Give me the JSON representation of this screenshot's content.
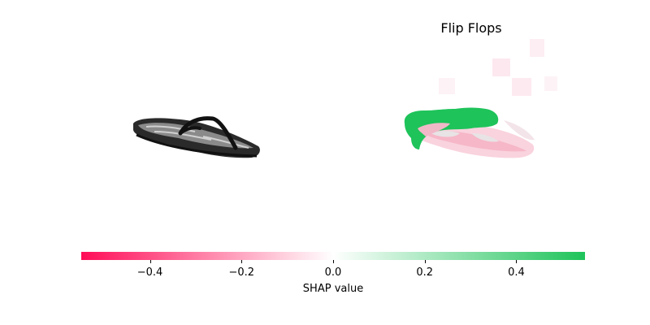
{
  "chart_data": {
    "type": "heatmap",
    "title": "Flip Flops",
    "colorbar": {
      "label": "SHAP value",
      "range": [
        -0.55,
        0.55
      ],
      "ticks": [
        -0.4,
        -0.2,
        0.0,
        0.2,
        0.4
      ],
      "tick_labels": [
        "−0.4",
        "−0.2",
        "0.0",
        "0.2",
        "0.4"
      ],
      "negative_color": "#ff0d57",
      "positive_color": "#1ec35a",
      "zero_color": "#ffffff"
    },
    "panels": [
      {
        "kind": "input-image",
        "subject": "flip-flop sandal"
      },
      {
        "kind": "shap-overlay",
        "subject": "flip-flop sandal",
        "regions": [
          {
            "area": "heel and upper edge",
            "value": 0.5
          },
          {
            "area": "sole and footbed",
            "value": -0.15
          },
          {
            "area": "surrounding patches",
            "value": -0.05
          }
        ]
      }
    ]
  }
}
